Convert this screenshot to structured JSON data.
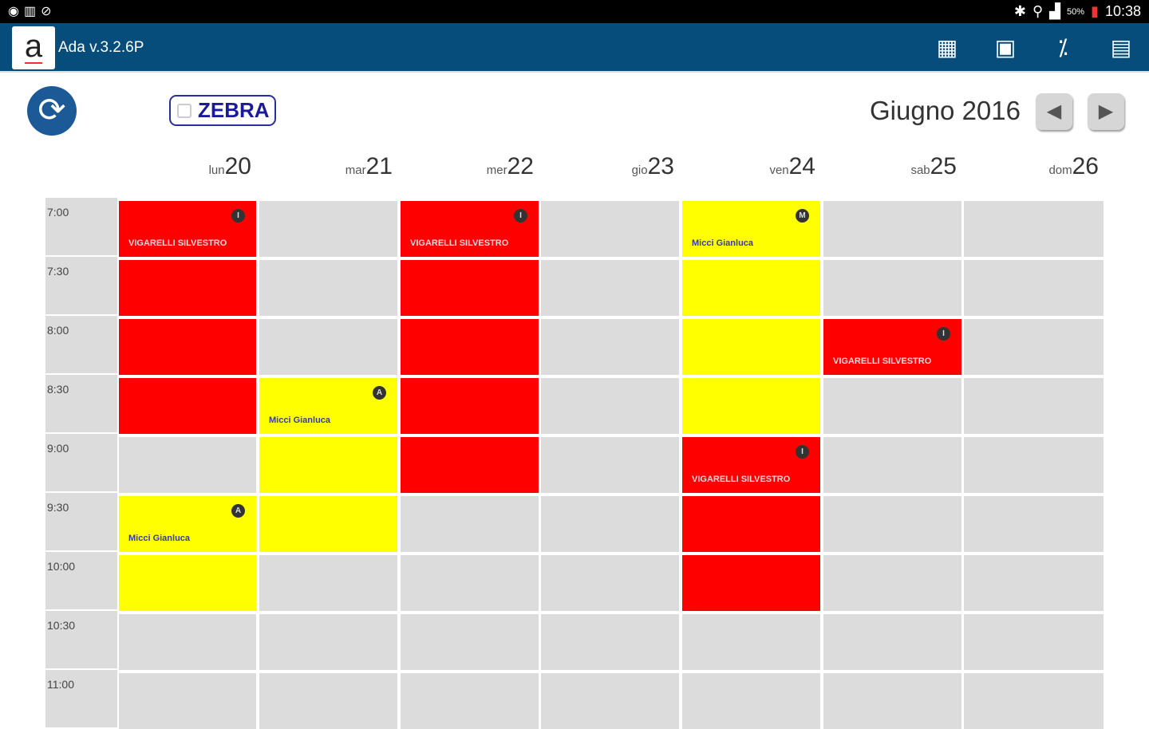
{
  "status_bar": {
    "time": "10:38",
    "battery": "50%"
  },
  "app": {
    "title": "Ada v.3.2.6P"
  },
  "toolbar": {
    "icons": [
      "calendar-icon",
      "document-icon",
      "percent-icon",
      "clipboard-icon"
    ]
  },
  "controls": {
    "zebra_label": "ZEBRA",
    "zebra_checked": false,
    "month_label": "Giugno 2016"
  },
  "days": [
    {
      "name": "lun",
      "date": "20"
    },
    {
      "name": "mar",
      "date": "21"
    },
    {
      "name": "mer",
      "date": "22"
    },
    {
      "name": "gio",
      "date": "23"
    },
    {
      "name": "ven",
      "date": "24"
    },
    {
      "name": "sab",
      "date": "25"
    },
    {
      "name": "dom",
      "date": "26"
    }
  ],
  "times": [
    "7:00",
    "7:30",
    "8:00",
    "8:30",
    "9:00",
    "9:30",
    "10:00",
    "10:30",
    "11:00"
  ],
  "colors": {
    "red": "#ff0000",
    "yellow": "#ffff00",
    "empty": "#dcdcdc"
  },
  "events": [
    {
      "day": 0,
      "start": "7:00",
      "slots": 4,
      "color": "#ff0000",
      "name": "VIGARELLI SILVESTRO",
      "badge": "I",
      "text_color": "#dddddd"
    },
    {
      "day": 0,
      "start": "9:30",
      "slots": 2,
      "color": "#ffff00",
      "name": "Micci Gianluca",
      "badge": "A",
      "text_color": "#3a3aa0"
    },
    {
      "day": 1,
      "start": "8:30",
      "slots": 3,
      "color": "#ffff00",
      "name": "Micci Gianluca",
      "badge": "A",
      "text_color": "#3a3aa0"
    },
    {
      "day": 2,
      "start": "7:00",
      "slots": 5,
      "color": "#ff0000",
      "name": "VIGARELLI SILVESTRO",
      "badge": "I",
      "text_color": "#dddddd"
    },
    {
      "day": 4,
      "start": "7:00",
      "slots": 4,
      "color": "#ffff00",
      "name": "Micci Gianluca",
      "badge": "M",
      "text_color": "#3a3aa0"
    },
    {
      "day": 4,
      "start": "9:00",
      "slots": 3,
      "color": "#ff0000",
      "name": "VIGARELLI SILVESTRO",
      "badge": "I",
      "text_color": "#dddddd"
    },
    {
      "day": 5,
      "start": "8:00",
      "slots": 1,
      "color": "#ff0000",
      "name": "VIGARELLI SILVESTRO",
      "badge": "I",
      "text_color": "#dddddd"
    }
  ]
}
